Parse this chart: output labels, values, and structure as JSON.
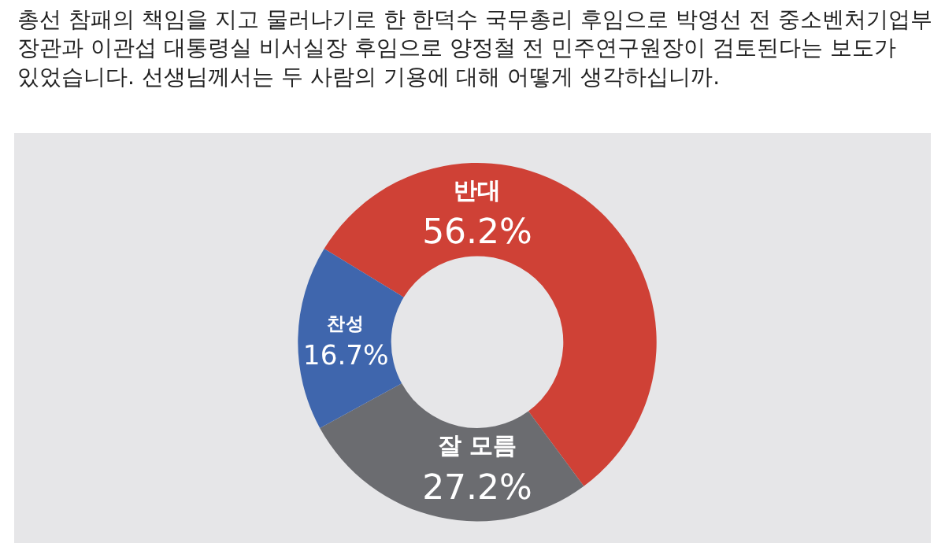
{
  "chart_data": {
    "type": "donut",
    "title": "총선 참패의 책임을 지고 물러나기로 한 한덕수 국무총리 후임으로 박영선 전 중소벤처기업부 장관과 이관섭 대통령실 비서실장 후임으로 양정철 전 민주연구원장이 검토된다는 보도가 있었습니다. 선생님께서는 두 사람의 기용에 대해 어떻게 생각하십니까.",
    "categories": [
      "반대",
      "잘 모름",
      "찬성"
    ],
    "values": [
      56.2,
      27.2,
      16.7
    ],
    "value_labels": [
      "56.2%",
      "27.2%",
      "16.7%"
    ],
    "colors": [
      "#cf4136",
      "#6b6c70",
      "#3f66ad"
    ],
    "legend": false
  }
}
